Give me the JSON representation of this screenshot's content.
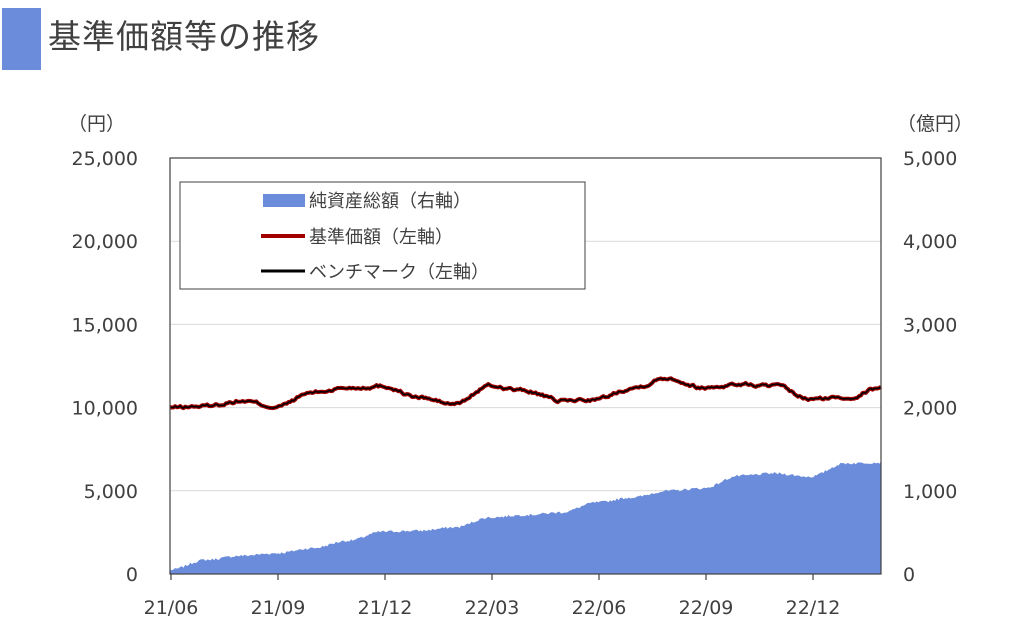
{
  "title": "基準価額等の推移",
  "colors": {
    "accent": "#6b8cdb",
    "area": "#6b8cdb",
    "nav": "#a00000",
    "benchmark": "#000000",
    "grid": "#d9d9d9",
    "frame": "#404040"
  },
  "chart_data": {
    "type": "line",
    "left_axis": {
      "unit": "（円）",
      "ticks": [
        "25,000",
        "20,000",
        "15,000",
        "10,000",
        "5,000",
        "0"
      ],
      "ylim": [
        0,
        25000
      ]
    },
    "right_axis": {
      "unit": "（億円）",
      "ticks": [
        "5,000",
        "4,000",
        "3,000",
        "2,000",
        "1,000",
        "0"
      ],
      "ylim": [
        0,
        5000
      ]
    },
    "x_ticks": [
      "21/06",
      "21/09",
      "21/12",
      "22/03",
      "22/06",
      "22/09",
      "22/12"
    ],
    "x": [
      "21/06",
      "21/07",
      "21/08",
      "21/09",
      "21/10",
      "21/11",
      "21/12",
      "22/01",
      "22/02",
      "22/03",
      "22/04",
      "22/05",
      "22/06",
      "22/07",
      "22/08",
      "22/09",
      "22/10",
      "22/11",
      "22/12",
      "23/01",
      "23/02"
    ],
    "grid": true,
    "legend_placement": "top-left",
    "series": [
      {
        "name": "純資産総額（右軸）",
        "type": "area",
        "axis": "right",
        "values": [
          50,
          170,
          220,
          250,
          310,
          400,
          510,
          520,
          560,
          680,
          710,
          740,
          860,
          920,
          1000,
          1030,
          1180,
          1210,
          1170,
          1330,
          1340
        ]
      },
      {
        "name": "基準価額（左軸）",
        "type": "line",
        "axis": "left",
        "values": [
          10000,
          10100,
          10400,
          10050,
          10900,
          11200,
          11300,
          10600,
          10200,
          11300,
          11000,
          10400,
          10500,
          11200,
          11800,
          11200,
          11400,
          11300,
          10500,
          10600,
          11200
        ]
      },
      {
        "name": "ベンチマーク（左軸）",
        "type": "line",
        "axis": "left",
        "values": [
          10000,
          10100,
          10400,
          10050,
          10900,
          11200,
          11300,
          10600,
          10200,
          11300,
          11000,
          10400,
          10500,
          11200,
          11800,
          11200,
          11400,
          11300,
          10500,
          10600,
          11200
        ]
      }
    ]
  }
}
